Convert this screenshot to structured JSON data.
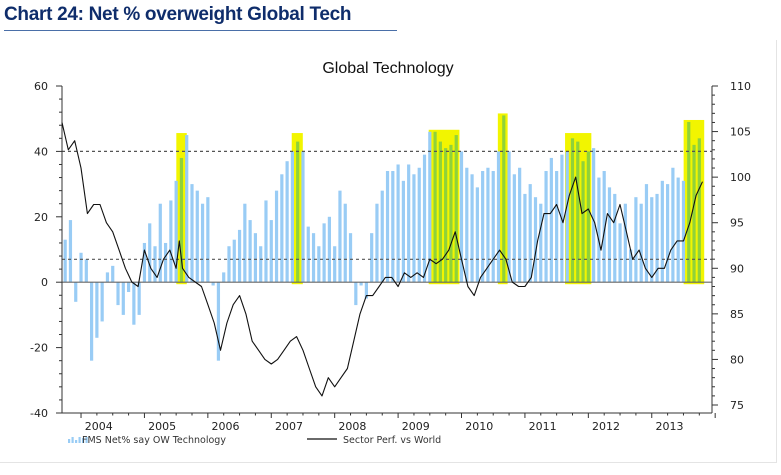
{
  "header": {
    "title": "Chart 24: Net % overweight Global Tech"
  },
  "chart_data": {
    "type": "bar",
    "title": "Global Technology",
    "xlabel": "",
    "ylabel_left": "",
    "ylabel_right": "",
    "ylim_left": [
      -40,
      60
    ],
    "ylim_right": [
      75,
      110
    ],
    "yticks_left": [
      -40,
      -20,
      0,
      20,
      40,
      60
    ],
    "yticks_right": [
      75,
      80,
      85,
      90,
      95,
      100,
      105,
      110
    ],
    "xticks": [
      "2004",
      "2005",
      "2006",
      "2007",
      "2008",
      "2009",
      "2010",
      "2011",
      "2012",
      "2013"
    ],
    "x_range_years": [
      2003.7,
      2013.95
    ],
    "reference_lines_left": [
      40,
      7
    ],
    "colors": {
      "bars": "#99ccf5",
      "line": "#111111",
      "highlight": "#f2f500",
      "highlight_bar": "#8fd23a",
      "header": "#0f2d6b"
    },
    "series": [
      {
        "name": "FMS Net% say OW Technology",
        "type": "bar",
        "axis": "left",
        "start": 2003.75,
        "step_months": 1,
        "values": [
          13,
          19,
          -6,
          9,
          7,
          -24,
          -17,
          -12,
          3,
          5,
          -7,
          -10,
          -3,
          -13,
          -10,
          12,
          18,
          11,
          24,
          12,
          25,
          31,
          38,
          45,
          30,
          28,
          24,
          26,
          -1,
          -24,
          3,
          11,
          13,
          16,
          24,
          19,
          15,
          11,
          25,
          19,
          28,
          33,
          37,
          40,
          43,
          40,
          17,
          15,
          11,
          18,
          20,
          11,
          28,
          24,
          15,
          -7,
          -1,
          -5,
          15,
          24,
          28,
          34,
          34,
          36,
          31,
          36,
          33,
          35,
          39,
          46,
          46,
          43,
          41,
          42,
          45,
          40,
          35,
          33,
          29,
          34,
          35,
          34,
          40,
          51,
          40,
          33,
          35,
          27,
          30,
          26,
          24,
          34,
          38,
          34,
          39,
          40,
          44,
          43,
          37,
          40,
          41,
          32,
          34,
          29,
          27,
          18,
          24,
          10,
          26,
          24,
          30,
          26,
          27,
          31,
          30,
          35,
          32,
          31,
          49,
          42,
          44
        ],
        "highlight_ranges": [
          [
            2005.55,
            2005.62
          ],
          [
            2007.37,
            2007.45
          ],
          [
            2009.53,
            2009.92
          ],
          [
            2010.62,
            2010.68
          ],
          [
            2011.68,
            2012.0
          ],
          [
            2013.55,
            2013.78
          ]
        ]
      },
      {
        "name": "Sector Perf. vs World",
        "type": "line",
        "axis": "right",
        "x": [
          2003.7,
          2003.8,
          2003.9,
          2004.0,
          2004.1,
          2004.2,
          2004.3,
          2004.4,
          2004.5,
          2004.6,
          2004.7,
          2004.8,
          2004.9,
          2005.0,
          2005.1,
          2005.2,
          2005.3,
          2005.4,
          2005.5,
          2005.55,
          2005.6,
          2005.7,
          2005.8,
          2005.9,
          2006.0,
          2006.1,
          2006.2,
          2006.3,
          2006.4,
          2006.5,
          2006.6,
          2006.7,
          2006.8,
          2006.9,
          2007.0,
          2007.1,
          2007.2,
          2007.3,
          2007.4,
          2007.5,
          2007.6,
          2007.7,
          2007.8,
          2007.9,
          2008.0,
          2008.1,
          2008.2,
          2008.3,
          2008.4,
          2008.5,
          2008.6,
          2008.7,
          2008.8,
          2008.9,
          2009.0,
          2009.1,
          2009.2,
          2009.3,
          2009.4,
          2009.5,
          2009.6,
          2009.7,
          2009.8,
          2009.9,
          2010.0,
          2010.1,
          2010.2,
          2010.3,
          2010.4,
          2010.5,
          2010.6,
          2010.7,
          2010.8,
          2010.9,
          2011.0,
          2011.1,
          2011.2,
          2011.3,
          2011.4,
          2011.5,
          2011.6,
          2011.7,
          2011.8,
          2011.9,
          2012.0,
          2012.1,
          2012.2,
          2012.3,
          2012.4,
          2012.5,
          2012.6,
          2012.7,
          2012.8,
          2012.9,
          2013.0,
          2013.1,
          2013.2,
          2013.3,
          2013.4,
          2013.5,
          2013.6,
          2013.7,
          2013.8
        ],
        "values": [
          106,
          103,
          104,
          101,
          96,
          97,
          97,
          95,
          94,
          92,
          90,
          88.5,
          88,
          92,
          90,
          89,
          91,
          92,
          90,
          93,
          90,
          89,
          88.5,
          88,
          86,
          84,
          81,
          84,
          86,
          87,
          85,
          82,
          81,
          80,
          79.5,
          80,
          81,
          82,
          82.5,
          81,
          79,
          77,
          76,
          78,
          77,
          78,
          79,
          82,
          85,
          87,
          87,
          88,
          89,
          89,
          88,
          89.5,
          89,
          89.5,
          89,
          91,
          90.5,
          91,
          92,
          94,
          91,
          88,
          87,
          89,
          90,
          91,
          92,
          91,
          88.5,
          88,
          88,
          89,
          93,
          96,
          96,
          97,
          95,
          98,
          100,
          96,
          96.5,
          95,
          92,
          96,
          95,
          97,
          94,
          91,
          92,
          90,
          89,
          90,
          90,
          92,
          93,
          93,
          95,
          98,
          99.5
        ]
      }
    ],
    "legend": {
      "placement": "bottom-left",
      "entries": [
        "FMS Net% say OW Technology",
        "Sector Perf. vs World"
      ]
    }
  }
}
